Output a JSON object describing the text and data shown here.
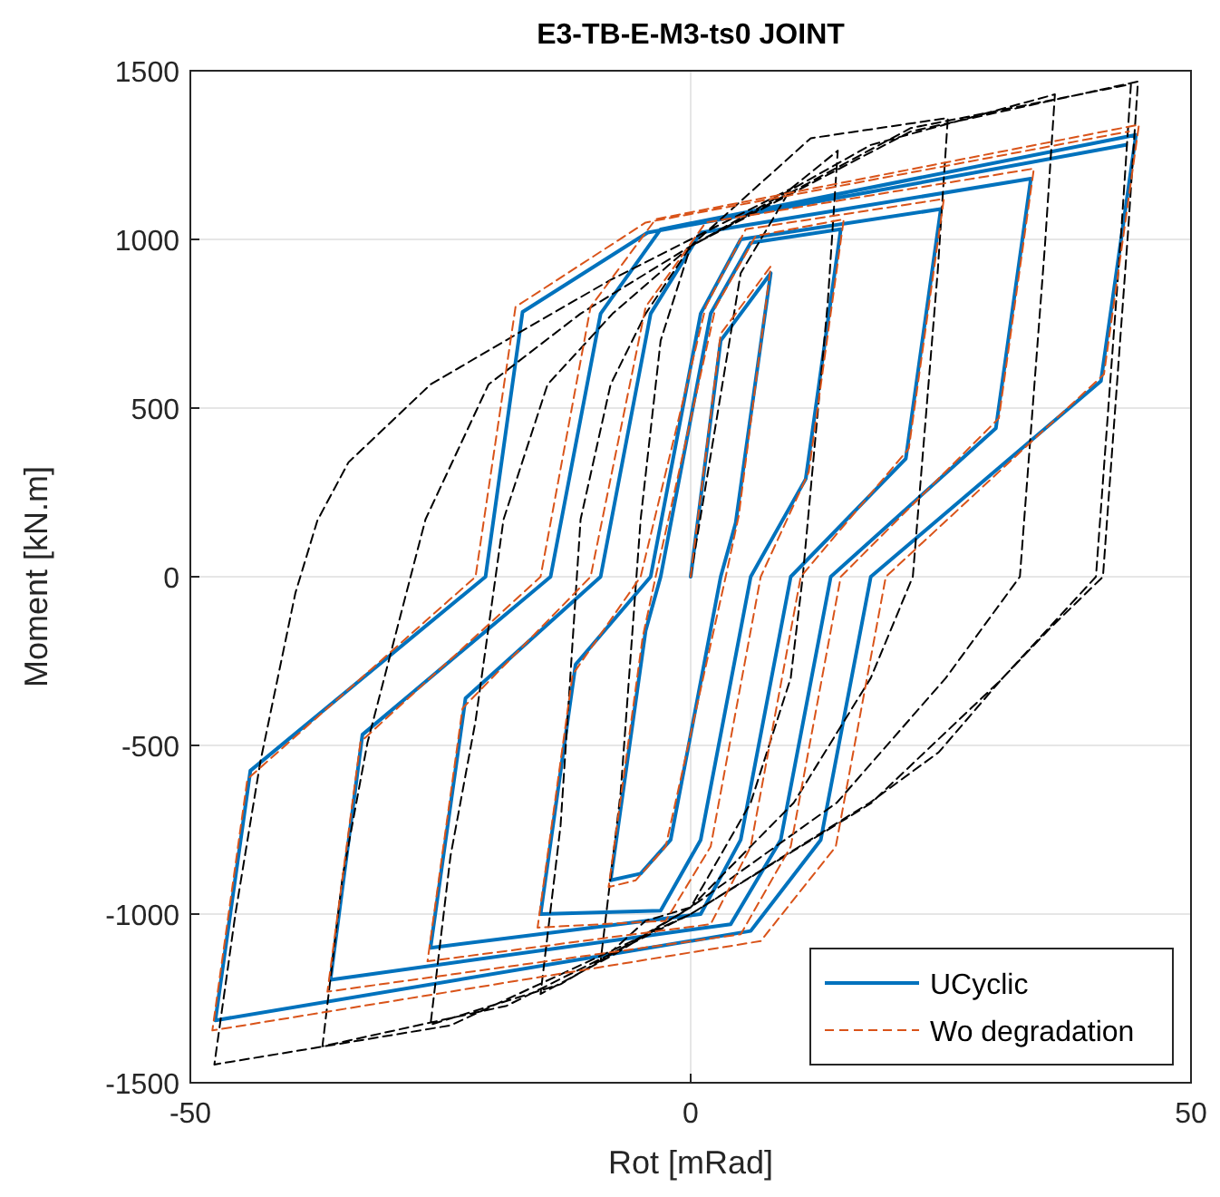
{
  "chart_data": {
    "type": "line",
    "title": "E3-TB-E-M3-ts0 JOINT",
    "xlabel": "Rot [mRad]",
    "ylabel": "Moment [kN.m]",
    "xlim": [
      -50,
      50
    ],
    "xticks": [
      -50,
      0,
      50
    ],
    "ylim": [
      -1500,
      1500
    ],
    "yticks": [
      -1500,
      -1000,
      -500,
      0,
      500,
      1000,
      1500
    ],
    "grid": true,
    "legend": "bottom right",
    "marker": "none",
    "series": [
      {
        "name": "UCyclic",
        "color": "#0072bd",
        "line_style": "solid",
        "x": [
          0,
          3,
          8,
          4.5,
          3,
          -2,
          -5,
          -8,
          -4.5,
          -3,
          2,
          6,
          15,
          11.5,
          6,
          1,
          -3,
          -15,
          -11.5,
          -4,
          1,
          5,
          25,
          21.5,
          10,
          5,
          1,
          -26,
          -22.5,
          -9,
          -4,
          1,
          34,
          30.5,
          14,
          9,
          4,
          -36,
          -32.8,
          -14,
          -9,
          -3,
          44.5,
          41,
          18,
          13,
          6,
          -47.5,
          -44,
          -20.5,
          -16.8,
          -4.3,
          43.5
        ],
        "values": [
          0,
          700,
          900,
          160,
          0,
          -780,
          -880,
          -900,
          -160,
          0,
          780,
          990,
          1030,
          290,
          0,
          -780,
          -990,
          -1000,
          -260,
          0,
          780,
          1000,
          1090,
          350,
          0,
          -780,
          -1000,
          -1100,
          -360,
          0,
          780,
          1020,
          1180,
          440,
          0,
          -780,
          -1030,
          -1195,
          -468,
          0,
          780,
          1030,
          1310,
          580,
          0,
          -780,
          -1050,
          -1315,
          -575,
          0,
          785,
          1020,
          1280
        ]
      },
      {
        "color": "#000000",
        "line_style": "dashed",
        "x": [
          0,
          5,
          10,
          14.7,
          13.7,
          11.2,
          10,
          6,
          0,
          -4.5,
          -9,
          -7,
          -5,
          -3,
          0,
          12,
          25.7,
          24.7,
          22.2,
          18,
          10.3,
          0,
          -7.5,
          -15,
          -13,
          -11,
          -8,
          -4.5,
          0,
          18,
          36.4,
          35.4,
          32.9,
          25.5,
          14.6,
          0,
          -13,
          -26,
          -24,
          -21.5,
          -18.7,
          -14.3,
          -7.8,
          0,
          22,
          44.7,
          43.7,
          41.2,
          36,
          31,
          24.8,
          17.9,
          0,
          -18.4,
          -36.8,
          -34.8,
          -32.3,
          -26.5,
          -20.2,
          -11,
          0,
          22,
          44,
          43,
          40.5,
          31,
          18,
          0,
          -24,
          -47.6,
          -45.5,
          -43,
          -39.5,
          -37.3,
          -34.2,
          -26,
          -17,
          -8,
          0,
          10
        ],
        "values": [
          0,
          900,
          1150,
          1263,
          813,
          0,
          -300,
          -670,
          -980,
          -1020,
          -1140,
          -640,
          170,
          700,
          980,
          1300,
          1360,
          910,
          0,
          -300,
          -670,
          -980,
          -1117,
          -1237,
          -737,
          170,
          570,
          780,
          980,
          1280,
          1430,
          980,
          0,
          -300,
          -670,
          -980,
          -1208,
          -1328,
          -828,
          -428,
          170,
          570,
          780,
          980,
          1320,
          1468,
          1018,
          0,
          -150,
          -306,
          -520,
          -670,
          -1000,
          -1272,
          -1392,
          -892,
          -492,
          170,
          570,
          780,
          980,
          1330,
          1460,
          1010,
          0,
          -306,
          -672,
          -1000,
          -1330,
          -1446,
          -1000,
          -548,
          -48,
          167,
          339,
          570,
          726,
          880,
          1000,
          1150
        ]
      },
      {
        "name": "Wo degradation",
        "color": "#d95319",
        "line_style": "dashed",
        "x": [
          0,
          3,
          8,
          4.8,
          3.5,
          -2.5,
          -5.5,
          -8.2,
          -4.8,
          -3.5,
          2.5,
          6.5,
          15.3,
          11.8,
          7,
          2,
          -2.5,
          -15.3,
          -11.8,
          -5,
          1.5,
          5.5,
          25.3,
          21.8,
          11,
          6,
          2,
          -26.3,
          -22.8,
          -10,
          -4.5,
          1.5,
          34.3,
          30.8,
          15,
          10,
          5,
          -36.3,
          -33,
          -15,
          -10,
          -3.5,
          44.8,
          41.3,
          19.5,
          14.5,
          7,
          -47.8,
          -44.3,
          -21.5,
          -17.5,
          -4.5,
          43.8
        ],
        "values": [
          0,
          720,
          920,
          180,
          0,
          -800,
          -900,
          -920,
          -180,
          0,
          800,
          1010,
          1060,
          310,
          0,
          -800,
          -1020,
          -1040,
          -290,
          0,
          800,
          1030,
          1120,
          380,
          0,
          -800,
          -1030,
          -1140,
          -390,
          0,
          800,
          1050,
          1210,
          470,
          0,
          -800,
          -1060,
          -1230,
          -490,
          0,
          800,
          1060,
          1340,
          600,
          0,
          -800,
          -1080,
          -1345,
          -600,
          0,
          800,
          1050,
          1320
        ]
      }
    ]
  }
}
